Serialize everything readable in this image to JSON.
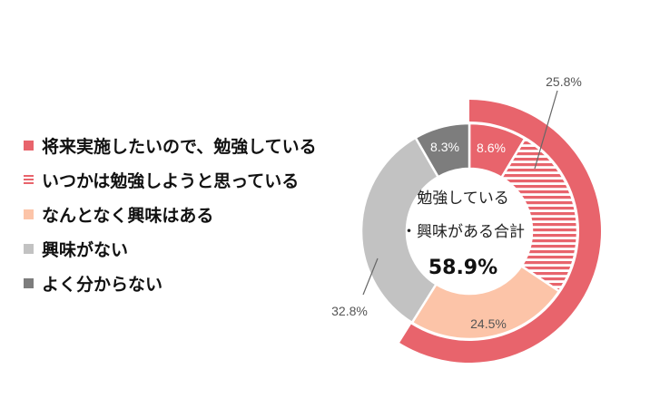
{
  "colors": {
    "red": "#e8646c",
    "stripe_white": "#ffffff",
    "peach": "#fcc4a8",
    "light_gray": "#c2c2c2",
    "dark_gray": "#7d7d7d",
    "background": "#ffffff"
  },
  "legend": [
    {
      "label": "将来実施したいので、勉強している",
      "color": "#e8646c",
      "pattern": "solid"
    },
    {
      "label": "いつかは勉強しようと思っている",
      "color": "#e8646c",
      "pattern": "stripes"
    },
    {
      "label": "なんとなく興味はある",
      "color": "#fcc4a8",
      "pattern": "solid"
    },
    {
      "label": "興味がない",
      "color": "#c2c2c2",
      "pattern": "solid"
    },
    {
      "label": "よく分からない",
      "color": "#7d7d7d",
      "pattern": "solid"
    }
  ],
  "center": {
    "line1": "勉強している",
    "line2": "・興味がある合計",
    "total": "58.9%"
  },
  "chart_data": {
    "type": "pie",
    "variant": "donut",
    "title": "",
    "start_angle_deg": 0,
    "direction": "clockwise",
    "slices": [
      {
        "label": "将来実施したいので、勉強している",
        "value": 8.6,
        "value_label": "8.6%",
        "color": "#e8646c",
        "pattern": "solid"
      },
      {
        "label": "いつかは勉強しようと思っている",
        "value": 25.8,
        "value_label": "25.8%",
        "color": "#e8646c",
        "pattern": "stripes"
      },
      {
        "label": "なんとなく興味はある",
        "value": 24.5,
        "value_label": "24.5%",
        "color": "#fcc4a8",
        "pattern": "solid"
      },
      {
        "label": "興味がない",
        "value": 32.8,
        "value_label": "32.8%",
        "color": "#c2c2c2",
        "pattern": "solid"
      },
      {
        "label": "よく分からない",
        "value": 8.3,
        "value_label": "8.3%",
        "color": "#7d7d7d",
        "pattern": "solid"
      }
    ],
    "outer_ring": {
      "start_deg": 0,
      "end_deg": 212,
      "value": 58.9,
      "value_label": "58.9%",
      "color": "#e8646c"
    }
  }
}
